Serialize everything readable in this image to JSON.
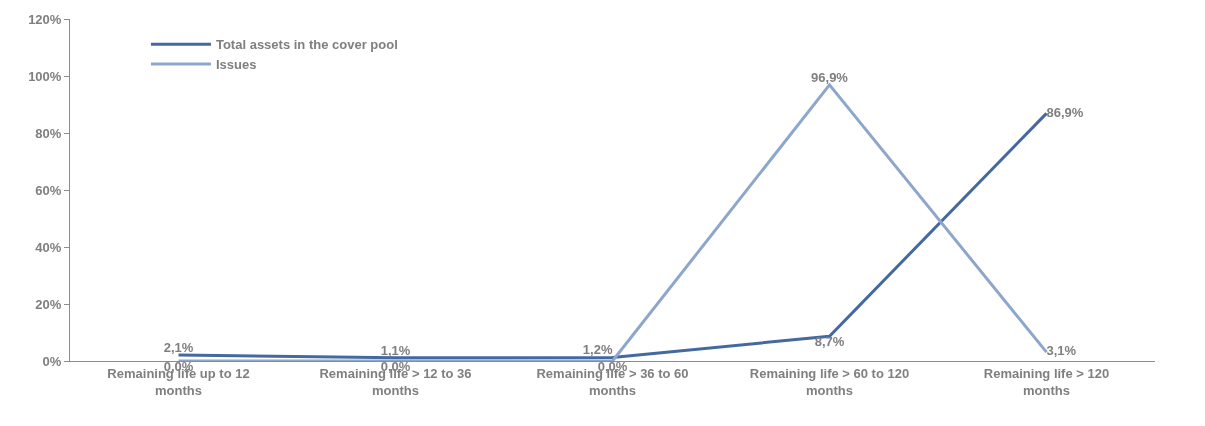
{
  "chart_data": {
    "type": "line",
    "categories": [
      "Remaining life up to 12 months",
      "Remaining life > 12 to 36 months",
      "Remaining life > 36 to 60 months",
      "Remaining life > 60 to 120 months",
      "Remaining life > 120 months"
    ],
    "series": [
      {
        "name": "Total assets in the cover pool",
        "color": "#44699f",
        "values": [
          2.1,
          1.1,
          1.2,
          8.7,
          86.9
        ],
        "value_labels": [
          "2,1%",
          "1,1%",
          "1,2%",
          "8,7%",
          "86,9%"
        ]
      },
      {
        "name": "Issues",
        "color": "#8da6cc",
        "values": [
          0.0,
          0.0,
          0.0,
          96.9,
          3.1
        ],
        "value_labels": [
          "0,0%",
          "0,0%",
          "0,0%",
          "96,9%",
          "3,1%"
        ]
      }
    ],
    "ylim": [
      0,
      120
    ],
    "yticks": [
      {
        "value": 0,
        "label": "0%"
      },
      {
        "value": 20,
        "label": "20%"
      },
      {
        "value": 40,
        "label": "40%"
      },
      {
        "value": 60,
        "label": "60%"
      },
      {
        "value": 80,
        "label": "80%"
      },
      {
        "value": 100,
        "label": "100%"
      },
      {
        "value": 120,
        "label": "120%"
      }
    ],
    "legend": "top left",
    "marker": "none",
    "line_style": "solid"
  }
}
